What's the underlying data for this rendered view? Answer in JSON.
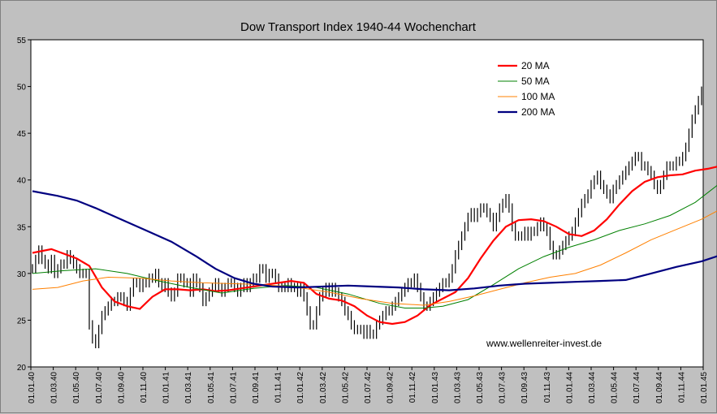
{
  "chart_data": {
    "type": "line",
    "title": "Dow Transport Index 1940-44 Wochenchart",
    "watermark": "www.wellenreiter-invest.de",
    "ylim": [
      20,
      55
    ],
    "y_ticks": [
      "20",
      "25",
      "30",
      "35",
      "40",
      "45",
      "50",
      "55"
    ],
    "x_ticks": [
      "01.01.40",
      "01.03.40",
      "01.05.40",
      "01.07.40",
      "01.09.40",
      "01.11.40",
      "01.01.41",
      "01.03.41",
      "01.05.41",
      "01.07.41",
      "01.09.41",
      "01.11.41",
      "01.01.42",
      "01.03.42",
      "01.05.42",
      "01.07.42",
      "01.09.42",
      "01.11.42",
      "01.01.43",
      "01.03.43",
      "01.05.43",
      "01.07.43",
      "01.09.43",
      "01.11.43",
      "01.01.44",
      "01.03.44",
      "01.05.44",
      "01.07.44",
      "01.09.44",
      "01.11.44",
      "01.01.45"
    ],
    "grid": "none",
    "legend_position": "top-right",
    "price_series": {
      "name": "",
      "color": "#000000",
      "values": [
        30.5,
        31.5,
        32.5,
        31.5,
        31.0,
        30.5,
        31.5,
        30.0,
        30.5,
        31.0,
        31.0,
        32.0,
        31.5,
        31.0,
        30.5,
        30.0,
        30.0,
        30.0,
        24.5,
        23.0,
        22.5,
        24.0,
        25.5,
        26.0,
        26.5,
        27.0,
        27.0,
        27.5,
        27.5,
        27.0,
        26.5,
        28.0,
        29.0,
        29.0,
        28.5,
        29.0,
        29.0,
        29.5,
        29.5,
        30.0,
        29.0,
        28.5,
        29.0,
        28.0,
        27.5,
        28.0,
        29.5,
        29.5,
        29.0,
        29.0,
        28.0,
        29.5,
        29.0,
        28.5,
        27.0,
        27.5,
        28.0,
        28.5,
        29.0,
        28.5,
        28.0,
        28.5,
        29.0,
        29.0,
        28.5,
        28.0,
        28.5,
        29.0,
        28.5,
        29.0,
        29.5,
        29.5,
        30.5,
        30.5,
        29.5,
        30.0,
        30.0,
        29.5,
        28.5,
        28.5,
        28.5,
        29.0,
        28.5,
        28.5,
        28.0,
        28.5,
        27.5,
        26.0,
        24.5,
        24.5,
        26.0,
        27.5,
        28.0,
        28.5,
        28.0,
        28.5,
        28.0,
        27.5,
        27.0,
        26.0,
        25.5,
        24.5,
        24.0,
        24.0,
        24.0,
        23.5,
        24.0,
        23.5,
        23.5,
        24.5,
        25.0,
        25.5,
        26.0,
        26.0,
        26.5,
        27.0,
        27.5,
        28.0,
        28.5,
        29.0,
        29.0,
        29.5,
        28.5,
        27.5,
        26.5,
        26.5,
        27.0,
        27.5,
        28.0,
        28.5,
        29.0,
        29.0,
        29.5,
        30.5,
        32.0,
        33.0,
        34.0,
        35.0,
        36.0,
        36.5,
        36.0,
        36.5,
        37.0,
        37.0,
        36.5,
        36.0,
        35.0,
        36.0,
        37.0,
        37.5,
        38.0,
        37.0,
        35.0,
        34.0,
        34.0,
        34.0,
        34.5,
        34.0,
        34.5,
        34.5,
        35.0,
        35.5,
        35.0,
        34.5,
        33.0,
        32.0,
        32.0,
        32.5,
        33.0,
        33.5,
        34.0,
        34.5,
        35.5,
        36.5,
        37.5,
        38.0,
        38.5,
        39.5,
        40.0,
        40.5,
        39.5,
        39.0,
        38.5,
        38.0,
        39.0,
        39.5,
        40.0,
        40.5,
        41.0,
        41.5,
        42.0,
        42.5,
        42.5,
        41.5,
        41.5,
        41.0,
        40.5,
        39.5,
        39.0,
        39.5,
        40.5,
        41.5,
        41.5,
        41.5,
        42.0,
        42.0,
        42.5,
        43.5,
        45.0,
        46.5,
        47.5,
        48.5,
        49.5
      ]
    },
    "series": [
      {
        "name": "20 MA",
        "color": "#ff0000",
        "points": [
          [
            0,
            32.2
          ],
          [
            6,
            32.6
          ],
          [
            14,
            31.6
          ],
          [
            18,
            30.8
          ],
          [
            22,
            28.5
          ],
          [
            26,
            27.0
          ],
          [
            30,
            26.5
          ],
          [
            34,
            26.2
          ],
          [
            38,
            27.5
          ],
          [
            42,
            28.3
          ],
          [
            46,
            28.3
          ],
          [
            50,
            28.2
          ],
          [
            54,
            28.3
          ],
          [
            58,
            28.1
          ],
          [
            62,
            28.2
          ],
          [
            66,
            28.4
          ],
          [
            70,
            28.6
          ],
          [
            74,
            28.8
          ],
          [
            78,
            29.0
          ],
          [
            82,
            29.2
          ],
          [
            86,
            29.0
          ],
          [
            90,
            27.8
          ],
          [
            94,
            27.3
          ],
          [
            98,
            27.1
          ],
          [
            102,
            26.5
          ],
          [
            106,
            25.5
          ],
          [
            110,
            24.8
          ],
          [
            114,
            24.6
          ],
          [
            118,
            24.8
          ],
          [
            122,
            25.5
          ],
          [
            126,
            26.6
          ],
          [
            130,
            27.3
          ],
          [
            134,
            28.0
          ],
          [
            138,
            29.5
          ],
          [
            142,
            31.6
          ],
          [
            146,
            33.5
          ],
          [
            150,
            35.0
          ],
          [
            154,
            35.7
          ],
          [
            158,
            35.8
          ],
          [
            162,
            35.6
          ],
          [
            166,
            35.0
          ],
          [
            170,
            34.2
          ],
          [
            174,
            34.0
          ],
          [
            178,
            34.6
          ],
          [
            182,
            35.8
          ],
          [
            186,
            37.4
          ],
          [
            190,
            38.8
          ],
          [
            194,
            39.8
          ],
          [
            198,
            40.3
          ],
          [
            202,
            40.5
          ],
          [
            206,
            40.6
          ],
          [
            210,
            41.0
          ],
          [
            214,
            41.2
          ],
          [
            218,
            41.5
          ],
          [
            222,
            42.8
          ]
        ]
      },
      {
        "name": "50 MA",
        "color": "#008000",
        "points": [
          [
            0,
            30.0
          ],
          [
            10,
            30.3
          ],
          [
            20,
            30.5
          ],
          [
            30,
            30.0
          ],
          [
            40,
            29.2
          ],
          [
            50,
            28.5
          ],
          [
            60,
            27.9
          ],
          [
            70,
            28.4
          ],
          [
            80,
            28.7
          ],
          [
            90,
            28.5
          ],
          [
            100,
            27.8
          ],
          [
            110,
            26.8
          ],
          [
            118,
            26.3
          ],
          [
            124,
            26.3
          ],
          [
            130,
            26.5
          ],
          [
            138,
            27.2
          ],
          [
            146,
            28.8
          ],
          [
            154,
            30.5
          ],
          [
            162,
            31.8
          ],
          [
            170,
            32.8
          ],
          [
            178,
            33.6
          ],
          [
            186,
            34.6
          ],
          [
            194,
            35.3
          ],
          [
            202,
            36.2
          ],
          [
            210,
            37.6
          ],
          [
            218,
            39.7
          ],
          [
            222,
            41.0
          ]
        ]
      },
      {
        "name": "100 MA",
        "color": "#ff8000",
        "points": [
          [
            0,
            28.3
          ],
          [
            8,
            28.5
          ],
          [
            16,
            29.2
          ],
          [
            24,
            29.6
          ],
          [
            34,
            29.5
          ],
          [
            44,
            29.2
          ],
          [
            54,
            29.0
          ],
          [
            64,
            28.9
          ],
          [
            74,
            28.8
          ],
          [
            84,
            28.5
          ],
          [
            94,
            28.0
          ],
          [
            104,
            27.3
          ],
          [
            114,
            26.8
          ],
          [
            124,
            26.6
          ],
          [
            132,
            27.0
          ],
          [
            140,
            27.6
          ],
          [
            148,
            28.3
          ],
          [
            156,
            29.0
          ],
          [
            164,
            29.6
          ],
          [
            172,
            30.0
          ],
          [
            180,
            30.9
          ],
          [
            188,
            32.2
          ],
          [
            196,
            33.6
          ],
          [
            204,
            34.7
          ],
          [
            212,
            35.8
          ],
          [
            222,
            37.6
          ]
        ]
      },
      {
        "name": "200 MA",
        "color": "#000080",
        "points": [
          [
            0,
            38.8
          ],
          [
            8,
            38.3
          ],
          [
            14,
            37.8
          ],
          [
            20,
            37.0
          ],
          [
            28,
            35.8
          ],
          [
            36,
            34.6
          ],
          [
            44,
            33.4
          ],
          [
            52,
            31.8
          ],
          [
            58,
            30.5
          ],
          [
            64,
            29.5
          ],
          [
            70,
            28.9
          ],
          [
            76,
            28.6
          ],
          [
            84,
            28.5
          ],
          [
            92,
            28.6
          ],
          [
            100,
            28.7
          ],
          [
            108,
            28.6
          ],
          [
            116,
            28.5
          ],
          [
            124,
            28.3
          ],
          [
            132,
            28.2
          ],
          [
            140,
            28.4
          ],
          [
            148,
            28.7
          ],
          [
            156,
            28.9
          ],
          [
            164,
            29.0
          ],
          [
            172,
            29.1
          ],
          [
            180,
            29.2
          ],
          [
            188,
            29.3
          ],
          [
            196,
            30.0
          ],
          [
            204,
            30.7
          ],
          [
            212,
            31.3
          ],
          [
            222,
            32.4
          ]
        ]
      }
    ]
  }
}
